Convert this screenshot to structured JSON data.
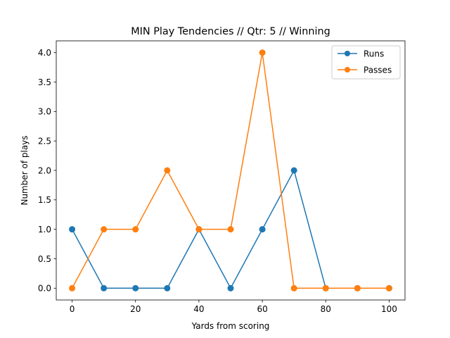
{
  "chart_data": {
    "type": "line",
    "title": "MIN Play Tendencies // Qtr: 5 // Winning",
    "xlabel": "Yards from scoring",
    "ylabel": "Number of plays",
    "x": [
      0,
      10,
      20,
      30,
      40,
      50,
      60,
      70,
      80,
      90,
      100
    ],
    "xlim": [
      -5,
      105
    ],
    "ylim": [
      -0.2,
      4.2
    ],
    "xticks": [
      0,
      20,
      40,
      60,
      80,
      100
    ],
    "yticks": [
      0.0,
      0.5,
      1.0,
      1.5,
      2.0,
      2.5,
      3.0,
      3.5,
      4.0
    ],
    "xtick_labels": [
      "0",
      "20",
      "40",
      "60",
      "80",
      "100"
    ],
    "ytick_labels": [
      "0.0",
      "0.5",
      "1.0",
      "1.5",
      "2.0",
      "2.5",
      "3.0",
      "3.5",
      "4.0"
    ],
    "grid": false,
    "legend_position": "top-right",
    "series": [
      {
        "name": "Runs",
        "color": "#1f77b4",
        "marker": "circle",
        "values": [
          1,
          0,
          0,
          0,
          1,
          0,
          1,
          2,
          0,
          0,
          0
        ]
      },
      {
        "name": "Passes",
        "color": "#ff7f0e",
        "marker": "circle",
        "values": [
          0,
          1,
          1,
          2,
          1,
          1,
          4,
          0,
          0,
          0,
          0
        ]
      }
    ]
  }
}
